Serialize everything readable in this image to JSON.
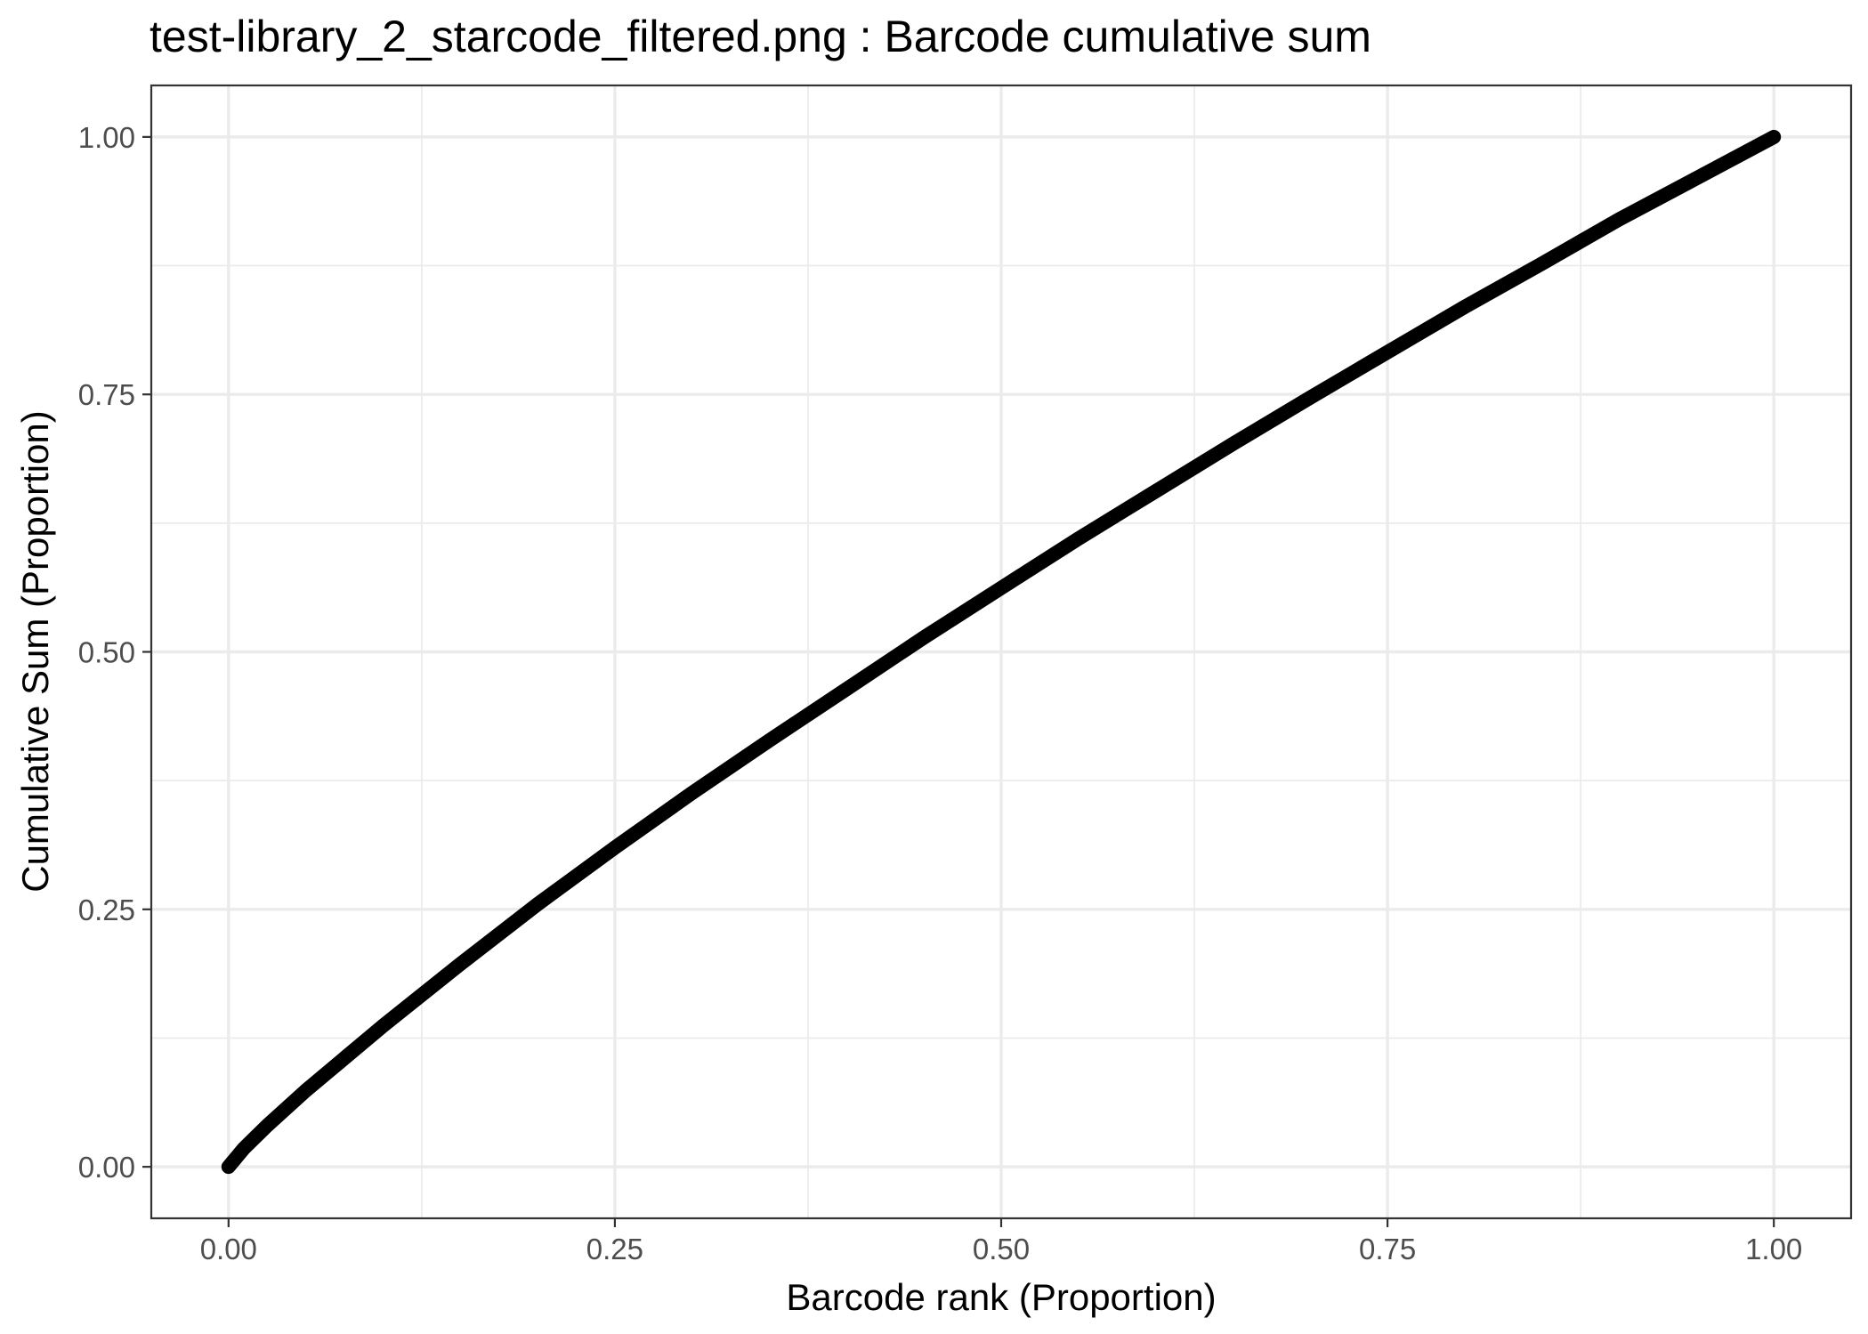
{
  "chart_data": {
    "type": "line",
    "title": "test-library_2_starcode_filtered.png : Barcode cumulative sum",
    "xlabel": "Barcode rank (Proportion)",
    "ylabel": "Cumulative Sum (Proportion)",
    "xlim": [
      -0.05,
      1.05
    ],
    "ylim": [
      -0.05,
      1.05
    ],
    "x_ticks": [
      0,
      0.25,
      0.5,
      0.75,
      1
    ],
    "x_tick_labels": [
      "0.00",
      "0.25",
      "0.50",
      "0.75",
      "1.00"
    ],
    "y_ticks": [
      0,
      0.25,
      0.5,
      0.75,
      1
    ],
    "y_tick_labels": [
      "0.00",
      "0.25",
      "0.50",
      "0.75",
      "1.00"
    ],
    "grid": true,
    "line_color": "#000000",
    "x": [
      0,
      0.01,
      0.025,
      0.05,
      0.1,
      0.15,
      0.2,
      0.25,
      0.3,
      0.35,
      0.4,
      0.45,
      0.5,
      0.55,
      0.6,
      0.65,
      0.7,
      0.75,
      0.8,
      0.85,
      0.9,
      0.95,
      1
    ],
    "y": [
      0,
      0.018,
      0.04,
      0.074,
      0.137,
      0.197,
      0.255,
      0.31,
      0.363,
      0.414,
      0.464,
      0.514,
      0.562,
      0.61,
      0.656,
      0.702,
      0.747,
      0.791,
      0.835,
      0.877,
      0.92,
      0.96,
      1
    ]
  }
}
